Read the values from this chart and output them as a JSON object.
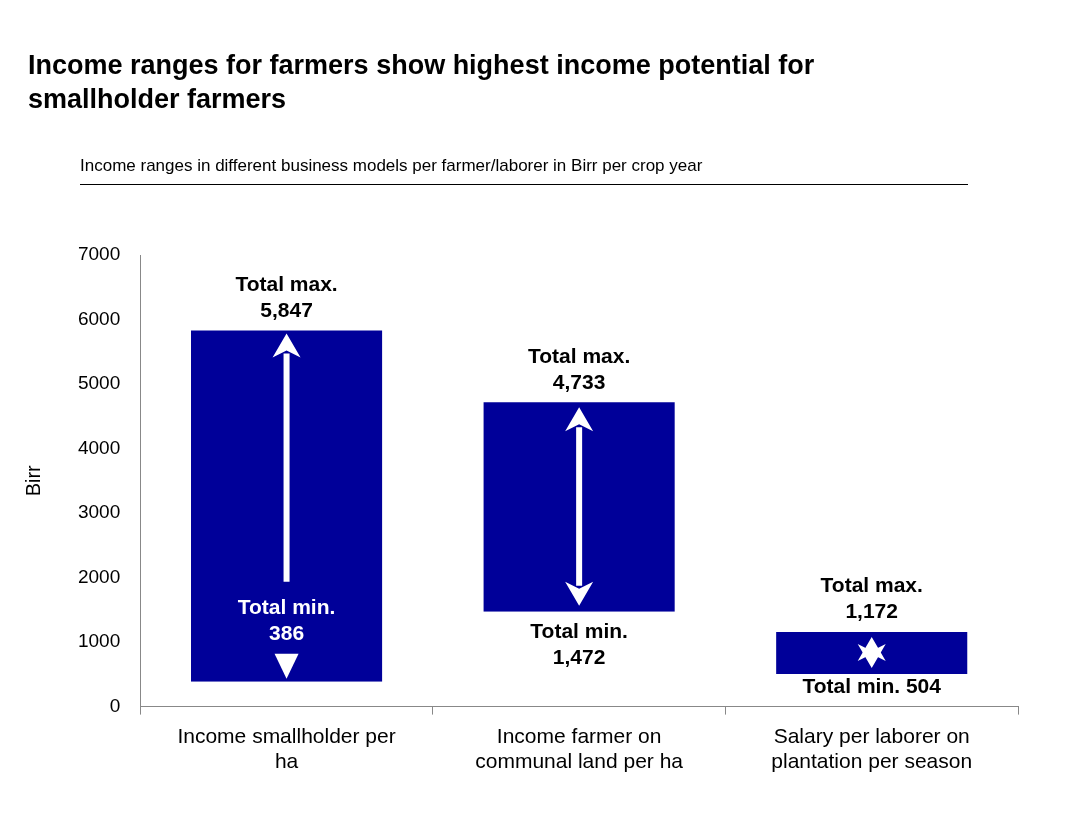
{
  "chart_data": {
    "type": "bar",
    "title": "Income ranges for farmers show highest income potential for smallholder farmers",
    "subtitle": "Income ranges in different business models per farmer/laborer in Birr per crop year",
    "ylabel": "Birr",
    "categories": [
      "Income smallholder per ha",
      "Income farmer on communal land per ha",
      "Salary per laborer on plantation per season"
    ],
    "base": [
      386,
      1472,
      504
    ],
    "values": [
      5461,
      3261,
      668
    ],
    "color": "#000099",
    "ylim": [
      0,
      7000
    ],
    "yticks": [
      0,
      1000,
      2000,
      3000,
      4000,
      5000,
      6000,
      7000
    ],
    "grid": false,
    "legend": false,
    "annotations": [
      {
        "text": "Total max. 5,847",
        "x": "Income smallholder per ha",
        "y": 5847
      },
      {
        "text": "Total min. 386",
        "x": "Income smallholder per ha",
        "y": 386
      },
      {
        "text": "Total max. 4,733",
        "x": "Income farmer on communal land per ha",
        "y": 4733
      },
      {
        "text": "Total min. 1,472",
        "x": "Income farmer on communal land per ha",
        "y": 1472
      },
      {
        "text": "Total max. 1,172",
        "x": "Salary per laborer on plantation per season",
        "y": 1172
      },
      {
        "text": "Total min. 504",
        "x": "Salary per laborer on plantation per season",
        "y": 504
      }
    ]
  }
}
